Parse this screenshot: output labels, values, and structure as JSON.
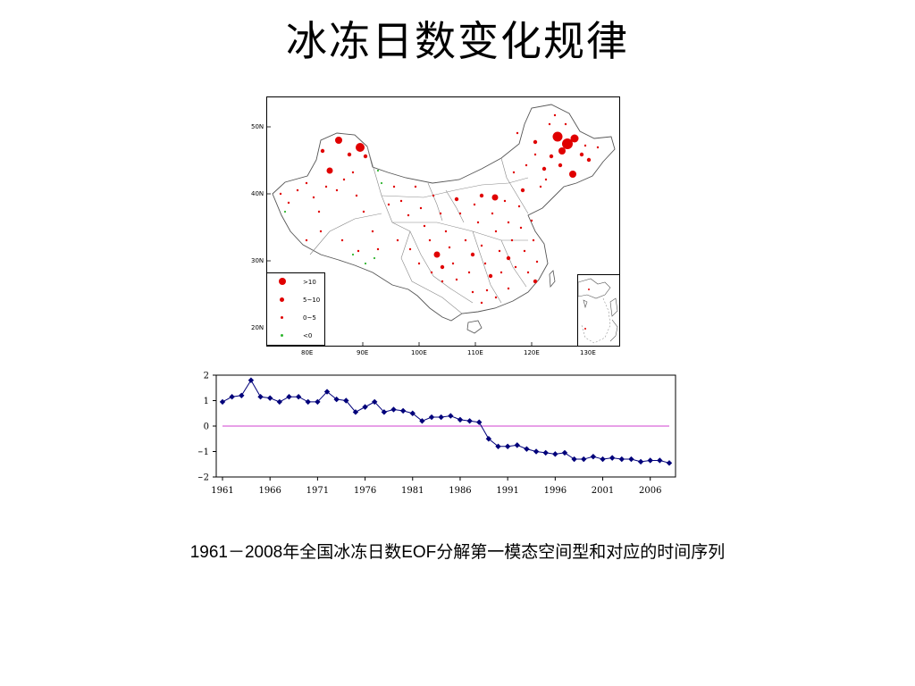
{
  "slide": {
    "title": "冰冻日数变化规律",
    "caption": "1961－2008年全国冰冻日数EOF分解第一模态空间型和对应的时间序列"
  },
  "map": {
    "lat_labels": [
      "50N",
      "40N",
      "30N",
      "20N"
    ],
    "lon_labels": [
      "80E",
      "90E",
      "100E",
      "110E",
      "120E",
      "130E"
    ],
    "legend": [
      {
        "label": ">10",
        "color": "#e00000"
      },
      {
        "label": "5~10",
        "color": "#e00000"
      },
      {
        "label": "0~5",
        "color": "#e00000"
      },
      {
        "label": "<0",
        "color": "#2fb52f"
      }
    ]
  },
  "chart_data": {
    "type": "line",
    "title": "",
    "xlabel": "",
    "ylabel": "",
    "x_tick_labels": [
      "1961",
      "1966",
      "1971",
      "1976",
      "1981",
      "1986",
      "1991",
      "1996",
      "2001",
      "2006"
    ],
    "y_tick_labels": [
      "2",
      "1",
      "0",
      "−1",
      "−2"
    ],
    "xlim": [
      1960,
      2010
    ],
    "ylim": [
      -2,
      2
    ],
    "reference_line": {
      "y": 0,
      "color": "#e080e0"
    },
    "series": [
      {
        "color": "#00007a",
        "x": [
          1961,
          1962,
          1963,
          1964,
          1965,
          1966,
          1967,
          1968,
          1969,
          1970,
          1971,
          1972,
          1973,
          1974,
          1975,
          1976,
          1977,
          1978,
          1979,
          1980,
          1981,
          1982,
          1983,
          1984,
          1985,
          1986,
          1987,
          1988,
          1989,
          1990,
          1991,
          1992,
          1993,
          1994,
          1995,
          1996,
          1997,
          1998,
          1999,
          2000,
          2001,
          2002,
          2003,
          2004,
          2005,
          2006,
          2007,
          2008
        ],
        "values": [
          0.95,
          1.15,
          1.2,
          1.8,
          1.15,
          1.1,
          0.95,
          1.15,
          1.15,
          0.95,
          0.95,
          1.35,
          1.05,
          1.0,
          0.55,
          0.75,
          0.95,
          0.55,
          0.65,
          0.6,
          0.5,
          0.2,
          0.35,
          0.35,
          0.4,
          0.25,
          0.2,
          0.15,
          -0.5,
          -0.8,
          -0.8,
          -0.75,
          -0.9,
          -1.0,
          -1.05,
          -1.1,
          -1.05,
          -1.3,
          -1.3,
          -1.2,
          -1.3,
          -1.25,
          -1.3,
          -1.3,
          -1.4,
          -1.35,
          -1.35,
          -1.45
        ]
      }
    ]
  }
}
